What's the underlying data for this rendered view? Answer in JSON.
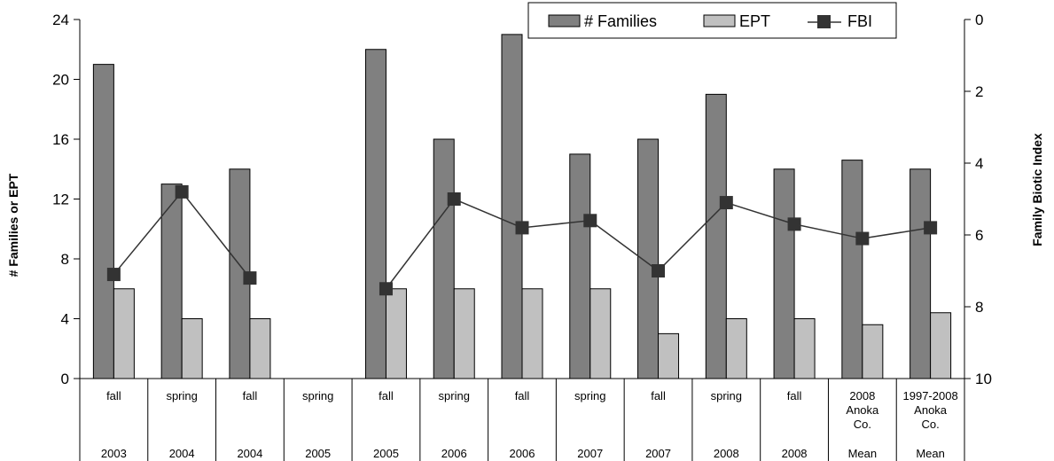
{
  "chart_data": {
    "type": "bar",
    "categories": [
      {
        "lines": [
          "fall"
        ],
        "year": "2003"
      },
      {
        "lines": [
          "spring"
        ],
        "year": "2004"
      },
      {
        "lines": [
          "fall"
        ],
        "year": "2004"
      },
      {
        "lines": [
          "spring"
        ],
        "year": "2005"
      },
      {
        "lines": [
          "fall"
        ],
        "year": "2005"
      },
      {
        "lines": [
          "spring"
        ],
        "year": "2006"
      },
      {
        "lines": [
          "fall"
        ],
        "year": "2006"
      },
      {
        "lines": [
          "spring"
        ],
        "year": "2007"
      },
      {
        "lines": [
          "fall"
        ],
        "year": "2007"
      },
      {
        "lines": [
          "spring"
        ],
        "year": "2008"
      },
      {
        "lines": [
          "fall"
        ],
        "year": "2008"
      },
      {
        "lines": [
          "2008",
          "Anoka",
          "Co."
        ],
        "year": "Mean"
      },
      {
        "lines": [
          "1997-2008",
          "Anoka",
          "Co."
        ],
        "year": "Mean"
      }
    ],
    "series": [
      {
        "name": "# Families",
        "type": "bar",
        "axis": "left",
        "color": "#808080",
        "values": [
          21,
          13,
          14,
          null,
          22,
          16,
          23,
          15,
          16,
          19,
          14,
          14.6,
          14
        ]
      },
      {
        "name": "EPT",
        "type": "bar",
        "axis": "left",
        "color": "#c0c0c0",
        "values": [
          6,
          4,
          4,
          null,
          6,
          6,
          6,
          6,
          3,
          4,
          4,
          3.6,
          4.4
        ]
      },
      {
        "name": "FBI",
        "type": "line",
        "axis": "right",
        "color": "#333333",
        "values": [
          7.1,
          4.8,
          7.2,
          null,
          7.5,
          5.0,
          5.8,
          5.6,
          7.0,
          5.1,
          5.7,
          6.1,
          5.8
        ]
      }
    ],
    "ylabel": "# Families or EPT",
    "y2label": "Family Biotic Index",
    "ylim": [
      0,
      24
    ],
    "yticks": [
      0,
      4,
      8,
      12,
      16,
      20,
      24
    ],
    "y2lim": [
      0,
      10
    ],
    "y2ticks": [
      0,
      2,
      4,
      6,
      8,
      10
    ],
    "y2_inverted": true,
    "grid": false,
    "legend_position": "top-right"
  }
}
